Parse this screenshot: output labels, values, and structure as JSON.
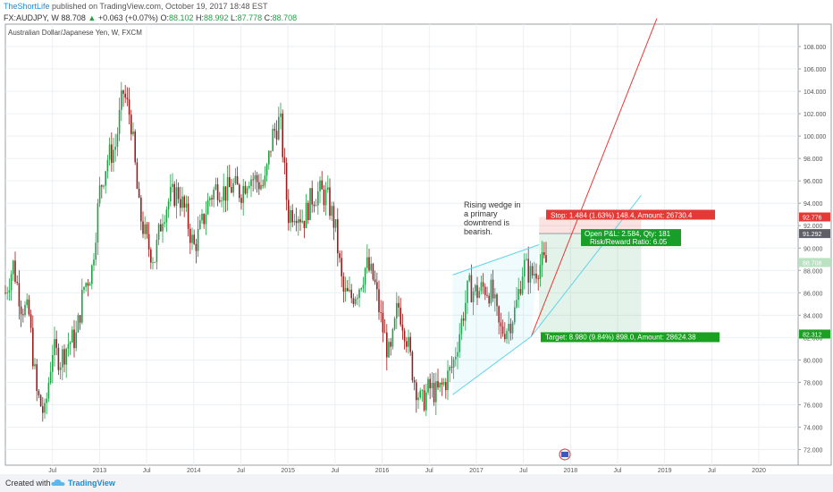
{
  "header": {
    "author": "TheShortLife",
    "published": "published on TradingView.com, October 19, 2017 18:48 EST",
    "symbol": "FX:AUDJPY, W",
    "price": "88.708",
    "arrow": "▲",
    "change": "+0.063 (+0.07%)",
    "ohlc": {
      "o_label": "O:",
      "o": "88.102",
      "h_label": "H:",
      "h": "88.992",
      "l_label": "L:",
      "l": "87.778",
      "c_label": "C:",
      "c": "88.708"
    }
  },
  "footer": {
    "created_with": "Created with",
    "brand": "TradingView"
  },
  "colors": {
    "up": "#21a046",
    "down": "#9b1c1c",
    "stop": "#e53935",
    "target": "#1aa121",
    "wedge": "#5fd4e8",
    "grid": "#eceff2"
  },
  "chart_data": {
    "type": "candlestick",
    "title": "Australian Dollar/Japanese Yen, W, FXCM",
    "ylim": [
      70.6,
      110.0
    ],
    "yticks": [
      "72.000",
      "74.000",
      "76.000",
      "78.000",
      "80.000",
      "82.000",
      "84.000",
      "86.000",
      "88.000",
      "90.000",
      "92.000",
      "94.000",
      "96.000",
      "98.000",
      "100.000",
      "102.000",
      "104.000",
      "106.000",
      "108.000"
    ],
    "xticks": [
      "Jul",
      "2013",
      "Jul",
      "2014",
      "Jul",
      "2015",
      "Jul",
      "2016",
      "Jul",
      "2017",
      "Jul",
      "2018",
      "Jul",
      "2019",
      "Jul",
      "2020"
    ],
    "xrange": [
      "2012-01",
      "2020-06"
    ],
    "price_path": [
      [
        "2012-01",
        86.0
      ],
      [
        "2012-02",
        88.5
      ],
      [
        "2012-03",
        85.0
      ],
      [
        "2012-04",
        84.0
      ],
      [
        "2012-05",
        77.0
      ],
      [
        "2012-06",
        75.0
      ],
      [
        "2012-07",
        81.0
      ],
      [
        "2012-08",
        80.0
      ],
      [
        "2012-09",
        81.5
      ],
      [
        "2012-10",
        82.0
      ],
      [
        "2012-11",
        86.5
      ],
      [
        "2012-12",
        88.0
      ],
      [
        "2013-01",
        95.0
      ],
      [
        "2013-02",
        98.0
      ],
      [
        "2013-03",
        99.0
      ],
      [
        "2013-04",
        104.0
      ],
      [
        "2013-05",
        101.5
      ],
      [
        "2013-06",
        93.5
      ],
      [
        "2013-07",
        90.5
      ],
      [
        "2013-08",
        89.0
      ],
      [
        "2013-09",
        93.0
      ],
      [
        "2013-10",
        94.5
      ],
      [
        "2013-11",
        95.0
      ],
      [
        "2013-12",
        93.0
      ],
      [
        "2014-01",
        90.0
      ],
      [
        "2014-02",
        92.0
      ],
      [
        "2014-03",
        94.5
      ],
      [
        "2014-04",
        95.5
      ],
      [
        "2014-05",
        95.0
      ],
      [
        "2014-06",
        95.5
      ],
      [
        "2014-07",
        95.0
      ],
      [
        "2014-08",
        96.5
      ],
      [
        "2014-09",
        96.0
      ],
      [
        "2014-10",
        95.5
      ],
      [
        "2014-11",
        100.0
      ],
      [
        "2014-12",
        101.5
      ],
      [
        "2015-01",
        93.0
      ],
      [
        "2015-02",
        93.5
      ],
      [
        "2015-03",
        92.5
      ],
      [
        "2015-04",
        94.5
      ],
      [
        "2015-05",
        95.0
      ],
      [
        "2015-06",
        94.5
      ],
      [
        "2015-07",
        92.0
      ],
      [
        "2015-08",
        86.0
      ],
      [
        "2015-09",
        85.5
      ],
      [
        "2015-10",
        86.5
      ],
      [
        "2015-11",
        88.5
      ],
      [
        "2015-12",
        87.0
      ],
      [
        "2016-01",
        83.0
      ],
      [
        "2016-02",
        80.0
      ],
      [
        "2016-03",
        85.0
      ],
      [
        "2016-04",
        82.5
      ],
      [
        "2016-05",
        78.5
      ],
      [
        "2016-06",
        76.0
      ],
      [
        "2016-07",
        77.5
      ],
      [
        "2016-08",
        77.0
      ],
      [
        "2016-09",
        78.0
      ],
      [
        "2016-10",
        79.5
      ],
      [
        "2016-11",
        83.0
      ],
      [
        "2016-12",
        86.5
      ],
      [
        "2017-01",
        86.0
      ],
      [
        "2017-02",
        86.5
      ],
      [
        "2017-03",
        86.0
      ],
      [
        "2017-04",
        82.5
      ],
      [
        "2017-05",
        83.0
      ],
      [
        "2017-06",
        84.5
      ],
      [
        "2017-07",
        88.5
      ],
      [
        "2017-08",
        87.5
      ],
      [
        "2017-09",
        88.5
      ],
      [
        "2017-10",
        88.7
      ]
    ],
    "annotations": {
      "note": [
        "Rising wedge in",
        "a primary",
        "downtrend is",
        "bearish."
      ],
      "stop": "Stop: 1.484 (1.63%) 148.4, Amount: 26730.4",
      "open_pl": "Open P&L: 2.584, Qty: 181",
      "risk_reward": "Risk/Reward Ratio: 6.05",
      "target": "Target: 8.980 (9.84%) 898.0, Amount: 28624.38"
    },
    "price_labels": [
      {
        "text": "92.776",
        "value": 92.776,
        "color": "#e53935"
      },
      {
        "text": "91.292",
        "value": 91.292,
        "color": "#5d6066"
      },
      {
        "text": "88.708",
        "value": 88.708,
        "color": "#b8e2c0"
      },
      {
        "text": "82.312",
        "value": 82.312,
        "color": "#1aa121"
      }
    ],
    "position": {
      "entry": 91.292,
      "stop": 92.776,
      "target": 82.312,
      "start": "2017-09",
      "end": "2018-10"
    },
    "wedge": {
      "upper": [
        [
          "2016-10",
          87.6
        ],
        [
          "2017-09",
          90.3
        ]
      ],
      "lower": [
        [
          "2016-10",
          76.9
        ],
        [
          "2017-08",
          82.1
        ]
      ]
    },
    "trendlines": [
      {
        "color": "red",
        "points": [
          [
            "2017-08",
            82.1
          ],
          [
            "2018-12",
            110.5
          ]
        ]
      },
      {
        "color": "cyan",
        "points": [
          [
            "2017-08",
            82.1
          ],
          [
            "2018-10",
            94.7
          ]
        ]
      }
    ],
    "grid": true
  }
}
